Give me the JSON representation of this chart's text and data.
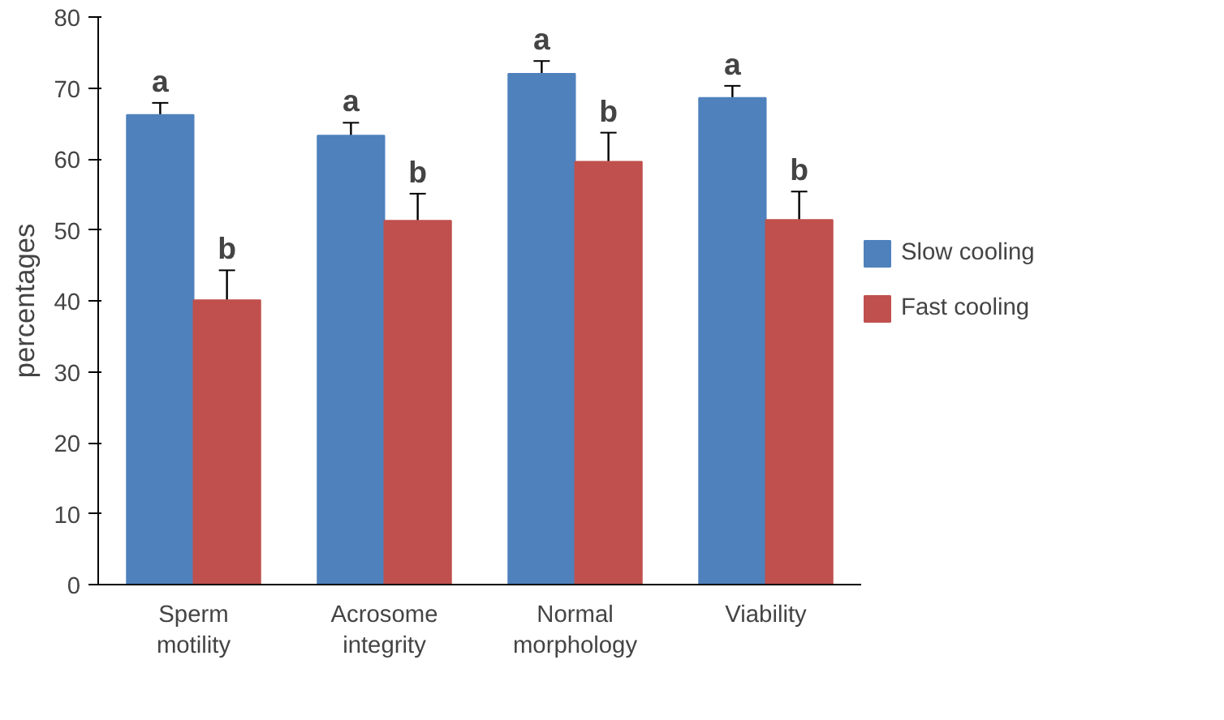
{
  "chart_data": {
    "type": "bar",
    "ylabel": "percentages",
    "categories": [
      "Sperm motility",
      "Acrosome integrity",
      "Normal morphology",
      "Viability"
    ],
    "series": [
      {
        "name": "Slow cooling",
        "color": "#4f81bd",
        "values": [
          66.2,
          63.3,
          72,
          68.6
        ],
        "errors": [
          1.7,
          1.8,
          1.8,
          1.7
        ],
        "value_labels": [
          "a",
          "a",
          "a",
          "a"
        ]
      },
      {
        "name": "Fast cooling",
        "color": "#c0504d",
        "values": [
          40.1,
          51.3,
          59.6,
          51.4
        ],
        "errors": [
          4.2,
          3.8,
          4.1,
          4.0
        ],
        "value_labels": [
          "b",
          "b",
          "b",
          "b"
        ]
      }
    ],
    "ylim": [
      0,
      80
    ],
    "yticks": [
      0,
      10,
      20,
      30,
      40,
      50,
      60,
      70,
      80
    ],
    "grid": false,
    "legend": "right"
  }
}
